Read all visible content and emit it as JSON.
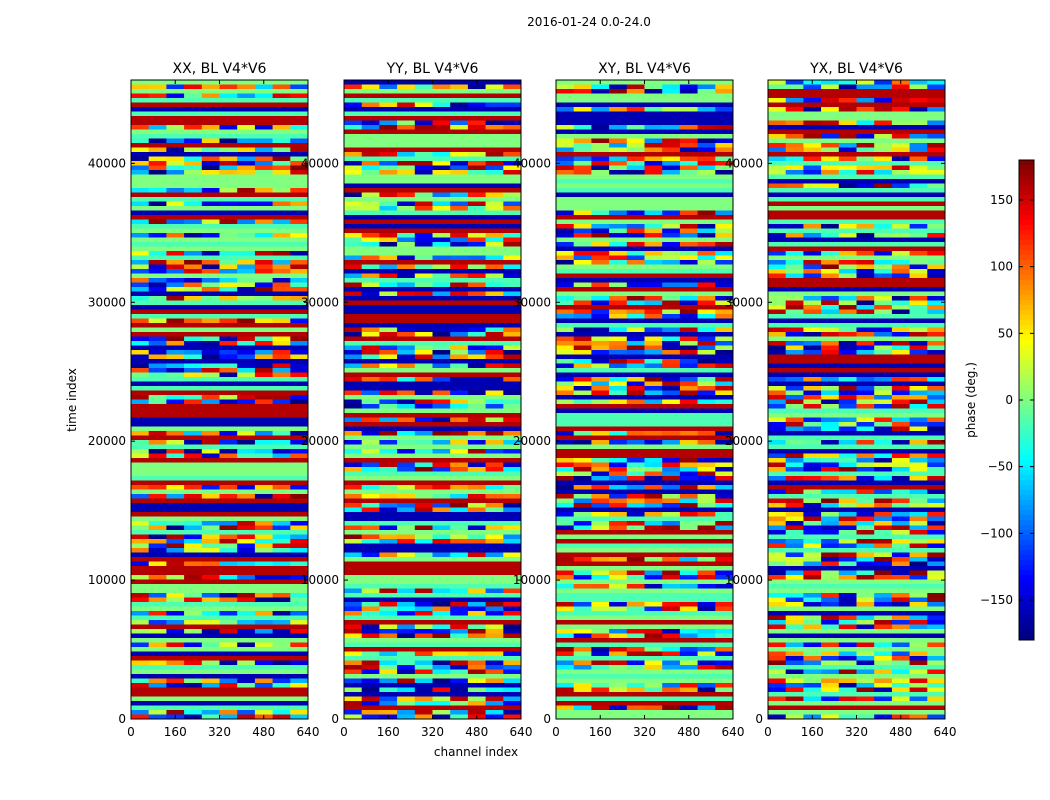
{
  "chart_data": {
    "type": "heatmap",
    "title": "2016-01-24 0.0-24.0",
    "xlabel": "channel index",
    "ylabel": "time index",
    "xlim": [
      0,
      640
    ],
    "ylim": [
      0,
      46000
    ],
    "xticks": [
      0,
      160,
      320,
      480,
      640
    ],
    "yticks": [
      0,
      10000,
      20000,
      30000,
      40000
    ],
    "panels": [
      {
        "title": "XX, BL V4*V6"
      },
      {
        "title": "YY, BL V4*V6"
      },
      {
        "title": "XY, BL V4*V6"
      },
      {
        "title": "YX, BL V4*V6"
      }
    ],
    "colorbar": {
      "label": "phase (deg.)",
      "range": [
        -180,
        180
      ],
      "ticks": [
        -150,
        -100,
        -50,
        0,
        50,
        100,
        150
      ],
      "tick_labels": [
        "−150",
        "−100",
        "−50",
        "0",
        "50",
        "100",
        "150"
      ],
      "colormap": "jet"
    }
  }
}
